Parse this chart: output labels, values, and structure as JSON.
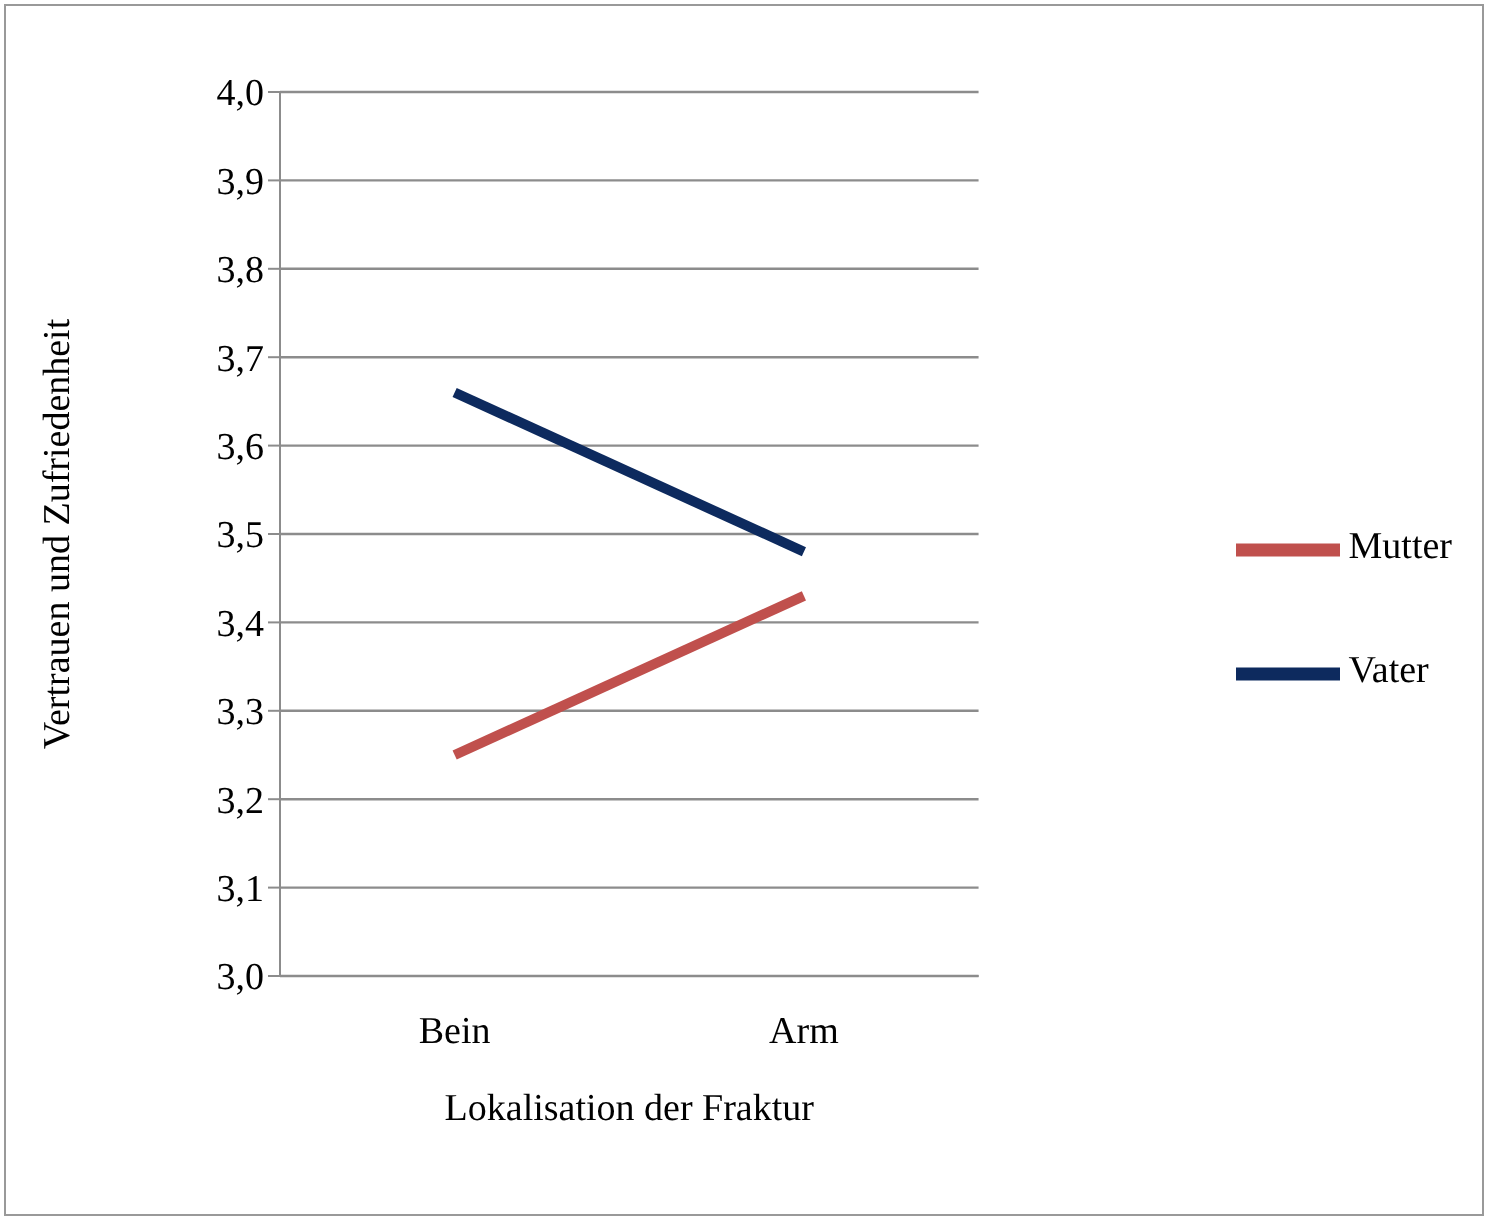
{
  "chart_data": {
    "type": "line",
    "xlabel": "Lokalisation der Fraktur",
    "ylabel": "Vertrauen und Zufriedenheit",
    "categories": [
      "Bein",
      "Arm"
    ],
    "series": [
      {
        "name": "Mutter",
        "color": "#c0504d",
        "values": [
          3.25,
          3.43
        ]
      },
      {
        "name": "Vater",
        "color": "#0d2a5e",
        "values": [
          3.66,
          3.48
        ]
      }
    ],
    "ylim": [
      3.0,
      4.0
    ],
    "yticks": [
      {
        "value": 3.0,
        "label": "3,0"
      },
      {
        "value": 3.1,
        "label": "3,1"
      },
      {
        "value": 3.2,
        "label": "3,2"
      },
      {
        "value": 3.3,
        "label": "3,3"
      },
      {
        "value": 3.4,
        "label": "3,4"
      },
      {
        "value": 3.5,
        "label": "3,5"
      },
      {
        "value": 3.6,
        "label": "3,6"
      },
      {
        "value": 3.7,
        "label": "3,7"
      },
      {
        "value": 3.8,
        "label": "3,8"
      },
      {
        "value": 3.9,
        "label": "3,9"
      },
      {
        "value": 4.0,
        "label": "4,0"
      }
    ],
    "grid": "y",
    "legend": "right",
    "marker": "none",
    "line_style": "solid"
  }
}
